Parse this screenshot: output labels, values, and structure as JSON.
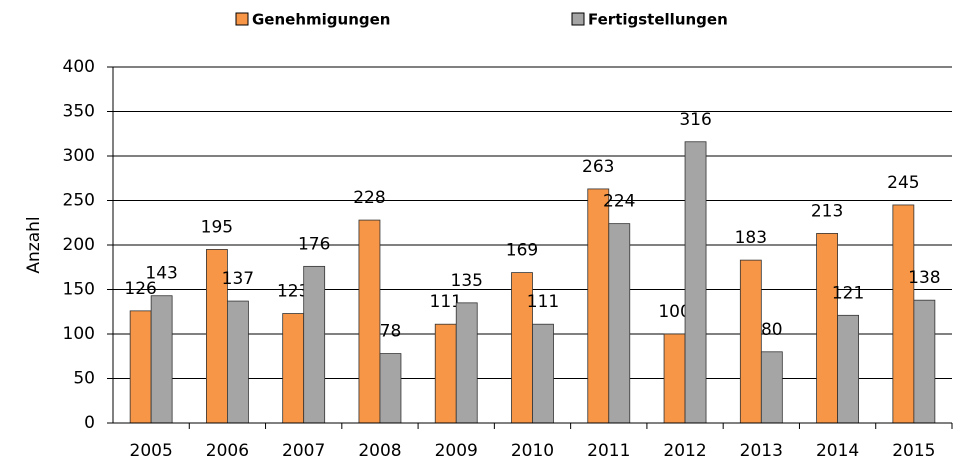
{
  "chart_data": {
    "type": "bar",
    "y_label": "Anzahl",
    "categories": [
      "2005",
      "2006",
      "2007",
      "2008",
      "2009",
      "2010",
      "2011",
      "2012",
      "2013",
      "2014",
      "2015"
    ],
    "series": [
      {
        "name": "Genehmigungen",
        "color": "#f79646",
        "values": [
          126,
          195,
          123,
          228,
          111,
          169,
          263,
          100,
          183,
          213,
          245
        ]
      },
      {
        "name": "Fertigstellungen",
        "color": "#a5a5a5",
        "values": [
          143,
          137,
          176,
          78,
          135,
          111,
          224,
          316,
          80,
          121,
          138
        ]
      }
    ],
    "ylim": [
      0,
      400
    ],
    "yticks": [
      0,
      50,
      100,
      150,
      200,
      250,
      300,
      350,
      400
    ],
    "grid": true,
    "legend": "top"
  }
}
